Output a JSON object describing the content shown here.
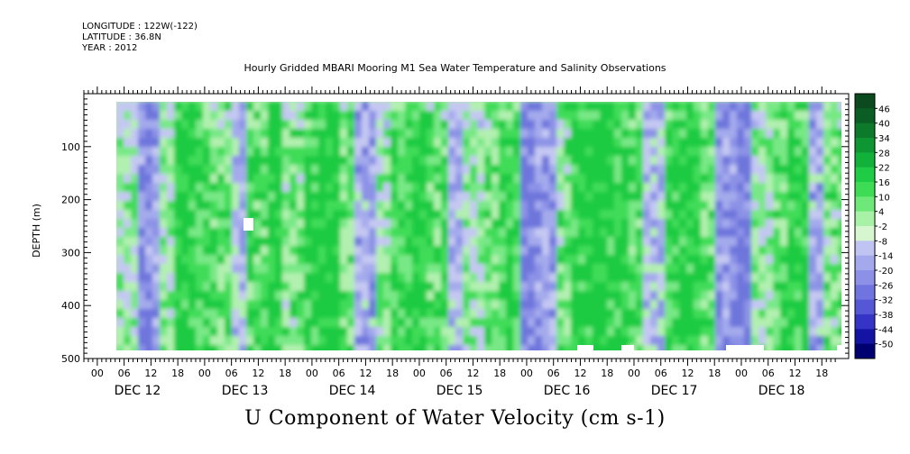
{
  "header": {
    "longitude": "LONGITUDE : 122W(-122)",
    "latitude": "LATITUDE : 36.8N",
    "year": "YEAR : 2012"
  },
  "chart_data": {
    "type": "heatmap",
    "title": "Hourly Gridded MBARI Mooring M1 Sea Water Temperature and Salinity Observations",
    "subtitle": "",
    "xlabel": "U Component of Water Velocity (cm s-1)",
    "ylabel": "DEPTH (m)",
    "ylim": [
      500,
      0
    ],
    "y_ticks": [
      "100",
      "200",
      "300",
      "400",
      "500"
    ],
    "x_hour_ticks": [
      "00",
      "06",
      "12",
      "18",
      "00",
      "06",
      "12",
      "18",
      "00",
      "06",
      "12",
      "18",
      "00",
      "06",
      "12",
      "18",
      "00",
      "06",
      "12",
      "18",
      "00",
      "06",
      "12",
      "18",
      "00",
      "06",
      "12",
      "18"
    ],
    "x_day_labels": [
      "DEC 12",
      "DEC 13",
      "DEC 14",
      "DEC 15",
      "DEC 16",
      "DEC 17",
      "DEC 18"
    ],
    "colorbar_labels": [
      "46",
      "40",
      "34",
      "28",
      "22",
      "16",
      "10",
      "4",
      "-2",
      "-8",
      "-14",
      "-20",
      "-26",
      "-32",
      "-38",
      "-44",
      "-50"
    ],
    "colorbar_colors": [
      "#0a4a1e",
      "#0b5e23",
      "#0c7a2a",
      "#0e9632",
      "#12b23a",
      "#1fcc45",
      "#3edc55",
      "#6ee878",
      "#a8f2a8",
      "#d6f6d0",
      "#c0c4f2",
      "#a4a8ec",
      "#8c90e6",
      "#7074e0",
      "#5458d6",
      "#3434c6",
      "#1414a4",
      "#000070"
    ],
    "colors": {
      "positive": "#22dd44",
      "negative": "#8890e4",
      "background": "#ffffff"
    }
  }
}
